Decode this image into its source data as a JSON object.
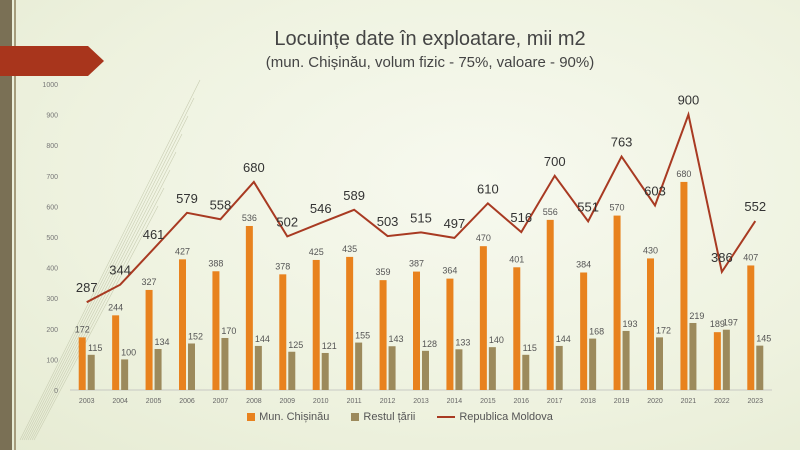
{
  "title": "Locuințe date în exploatare, mii m2",
  "subtitle": "(mun. Chișinău, volum fizic - 75%, valoare - 90%)",
  "colors": {
    "chisinau": "#e8821e",
    "restul": "#9c8a5c",
    "moldova": "#a83a22",
    "arrow": "#a8351c"
  },
  "chart_data": {
    "type": "bar",
    "categories": [
      "2003",
      "2004",
      "2005",
      "2006",
      "2007",
      "2008",
      "2009",
      "2010",
      "2011",
      "2012",
      "2013",
      "2014",
      "2015",
      "2016",
      "2017",
      "2018",
      "2019",
      "2020",
      "2021",
      "2022",
      "2023"
    ],
    "series": [
      {
        "name": "Mun. Chișinău",
        "type": "bar",
        "values": [
          172,
          244,
          327,
          427,
          388,
          536,
          378,
          425,
          435,
          359,
          387,
          364,
          470,
          401,
          556,
          384,
          570,
          430,
          680,
          189,
          407
        ]
      },
      {
        "name": "Restul țării",
        "type": "bar",
        "values": [
          115,
          100,
          134,
          152,
          170,
          144,
          125,
          121,
          155,
          143,
          128,
          133,
          140,
          115,
          144,
          168,
          193,
          172,
          219,
          197,
          145
        ]
      },
      {
        "name": "Republica Moldova",
        "type": "line",
        "values": [
          287,
          344,
          461,
          579,
          558,
          680,
          502,
          546,
          589,
          503,
          515,
          497,
          610,
          516,
          700,
          551,
          763,
          603,
          900,
          386,
          552
        ]
      }
    ],
    "ylim": [
      0,
      1000
    ],
    "yticks": [
      0,
      100,
      200,
      300,
      400,
      500,
      600,
      700,
      800,
      900,
      1000
    ],
    "legend": "bottom"
  }
}
